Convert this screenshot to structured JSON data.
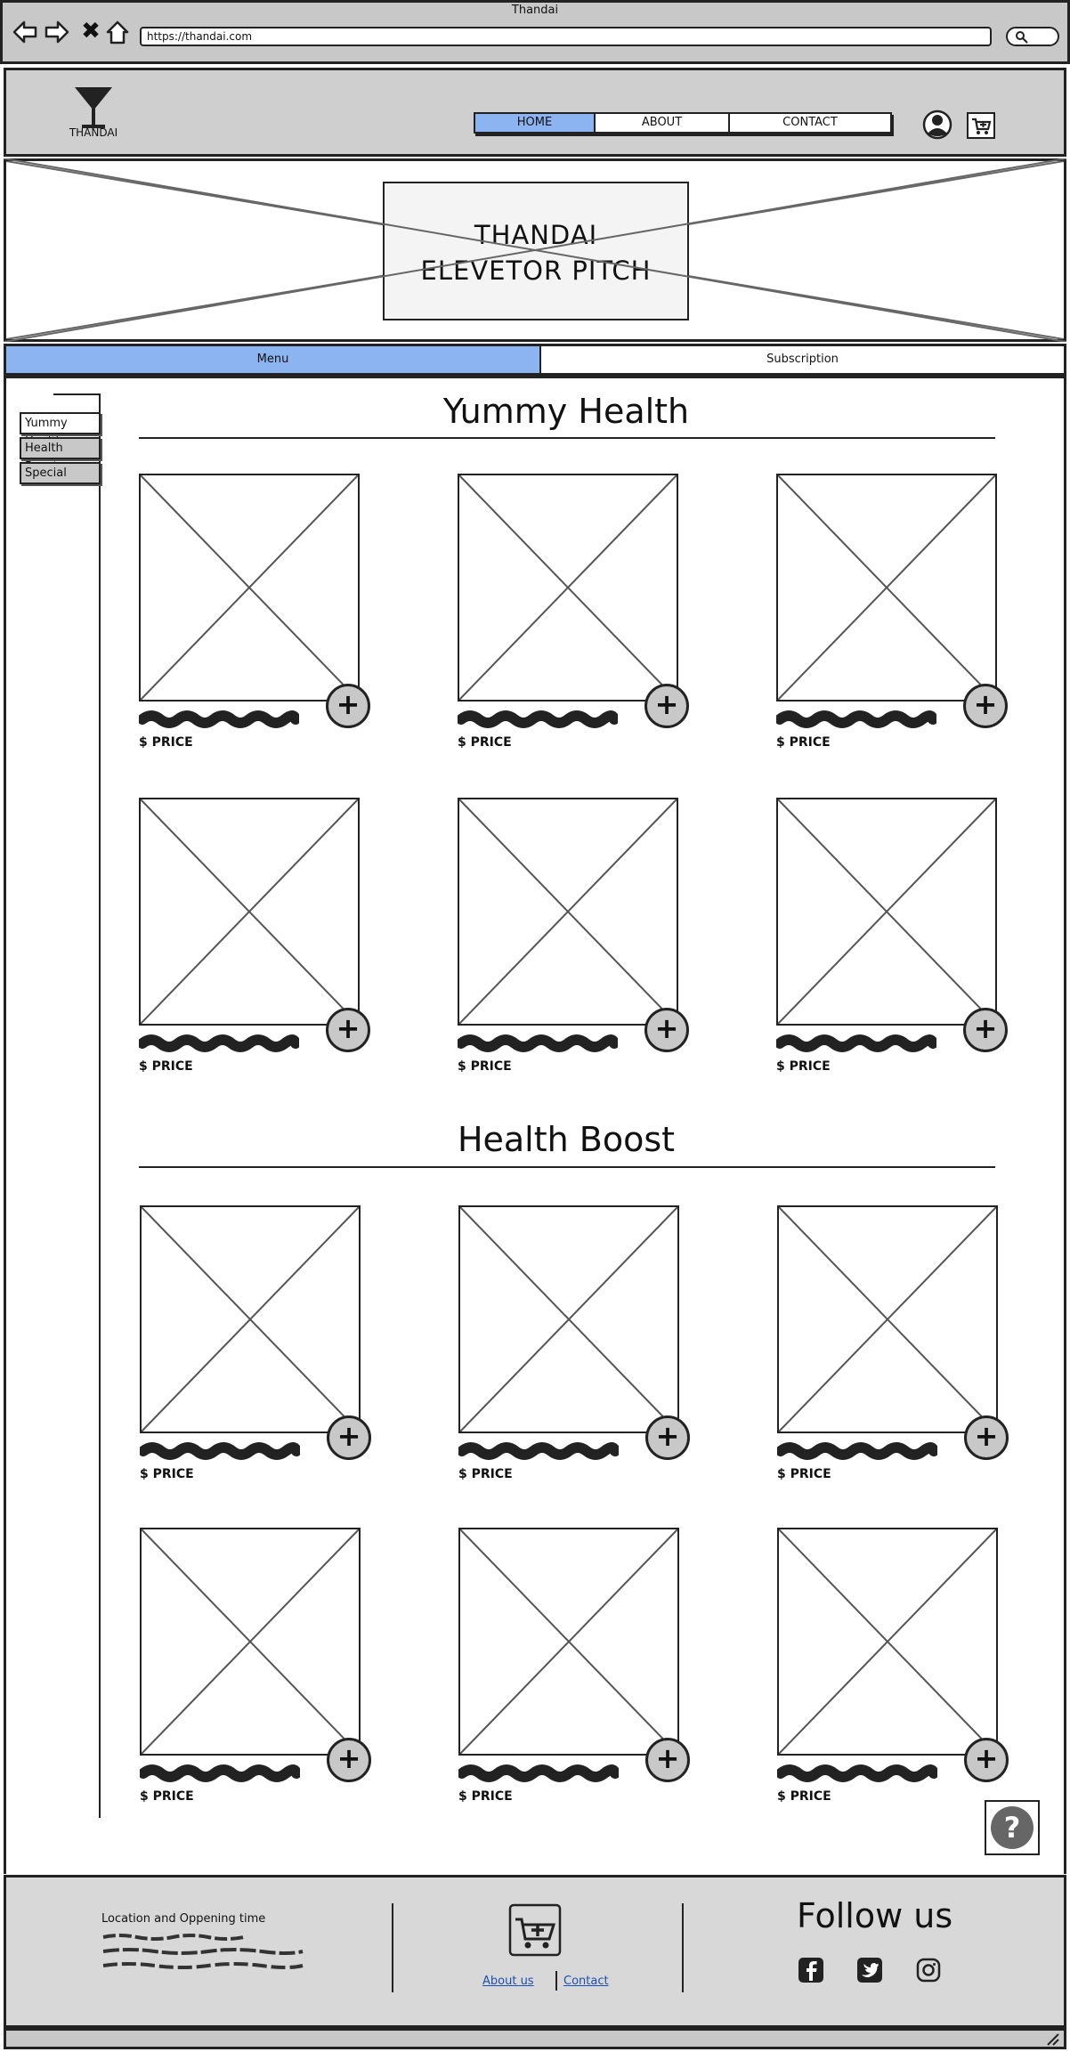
{
  "browser": {
    "title": "Thandai",
    "url": "https://thandai.com",
    "icons": [
      "back-arrow-icon",
      "forward-arrow-icon",
      "stop-icon",
      "home-icon",
      "search-icon"
    ],
    "stop_glyph": "✖"
  },
  "header": {
    "logo_text": "THANDAI",
    "nav": [
      {
        "label": "HOME",
        "active": true
      },
      {
        "label": "ABOUT",
        "active": false
      },
      {
        "label": "CONTACT",
        "active": false
      }
    ],
    "icons": [
      "user-icon",
      "cart-icon"
    ]
  },
  "hero": {
    "line1": "THANDAI",
    "line2": "ELEVETOR PITCH"
  },
  "tabs": [
    {
      "label": "Menu",
      "active": true
    },
    {
      "label": "Subscription",
      "active": false
    }
  ],
  "sidebar": {
    "items": [
      {
        "label": "Yummy Health",
        "active": true
      },
      {
        "label": "Health Boost",
        "active": false
      },
      {
        "label": "Special",
        "active": false
      }
    ]
  },
  "sections": [
    {
      "title": "Yummy Health",
      "items": [
        {
          "price": "$ PRICE"
        },
        {
          "price": "$ PRICE"
        },
        {
          "price": "$ PRICE"
        },
        {
          "price": "$ PRICE"
        },
        {
          "price": "$ PRICE"
        },
        {
          "price": "$ PRICE"
        }
      ]
    },
    {
      "title": "Health Boost",
      "items": [
        {
          "price": "$ PRICE"
        },
        {
          "price": "$ PRICE"
        },
        {
          "price": "$ PRICE"
        },
        {
          "price": "$ PRICE"
        },
        {
          "price": "$ PRICE"
        },
        {
          "price": "$ PRICE"
        }
      ]
    }
  ],
  "add_glyph": "+",
  "help_icon": "help-icon",
  "footer": {
    "location_title": "Location and Oppening time",
    "about_link": "About us",
    "contact_link": "Contact",
    "follow_title": "Follow us",
    "social": [
      "facebook-icon",
      "twitter-icon",
      "instagram-icon"
    ]
  },
  "colors": {
    "active_blue": "#8cb4f0",
    "chrome_gray": "#c8c8c8",
    "link_blue": "#1a4fb5"
  }
}
